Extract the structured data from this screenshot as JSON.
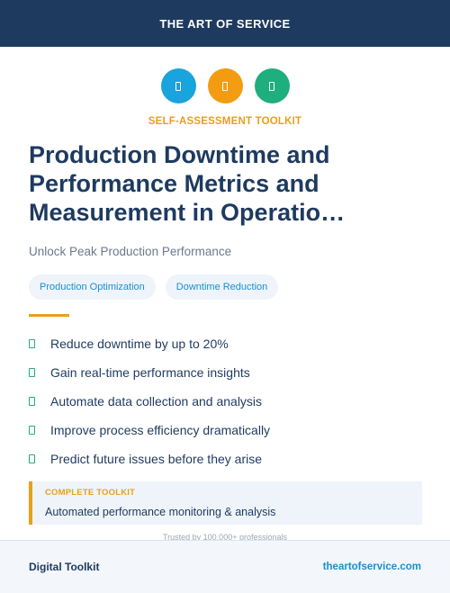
{
  "header": {
    "brand": "THE ART OF SERVICE"
  },
  "icons": [
    {
      "name": "blue-circle-icon",
      "color": "#1aa3dc"
    },
    {
      "name": "orange-circle-icon",
      "color": "#f39c12"
    },
    {
      "name": "green-circle-icon",
      "color": "#1fae7d"
    }
  ],
  "eyebrow": "SELF-ASSESSMENT TOOLKIT",
  "title": "Production Downtime and Performance Metrics and Measurement in Operatio…",
  "subtitle": "Unlock Peak Production Performance",
  "tags": [
    "Production Optimization",
    "Downtime Reduction"
  ],
  "features": [
    "Reduce downtime by up to 20%",
    "Gain real-time performance insights",
    "Automate data collection and analysis",
    "Improve process efficiency dramatically",
    "Predict future issues before they arise"
  ],
  "callout": {
    "label": "COMPLETE TOOLKIT",
    "description": "Automated performance monitoring & analysis"
  },
  "trusted": "Trusted by 100,000+ professionals",
  "footer": {
    "left": "Digital Toolkit",
    "right": "theartofservice.com"
  },
  "colors": {
    "navy": "#1e3a5f",
    "accent": "#e8a018",
    "link": "#1a8fd0",
    "check": "#1fae7d"
  }
}
